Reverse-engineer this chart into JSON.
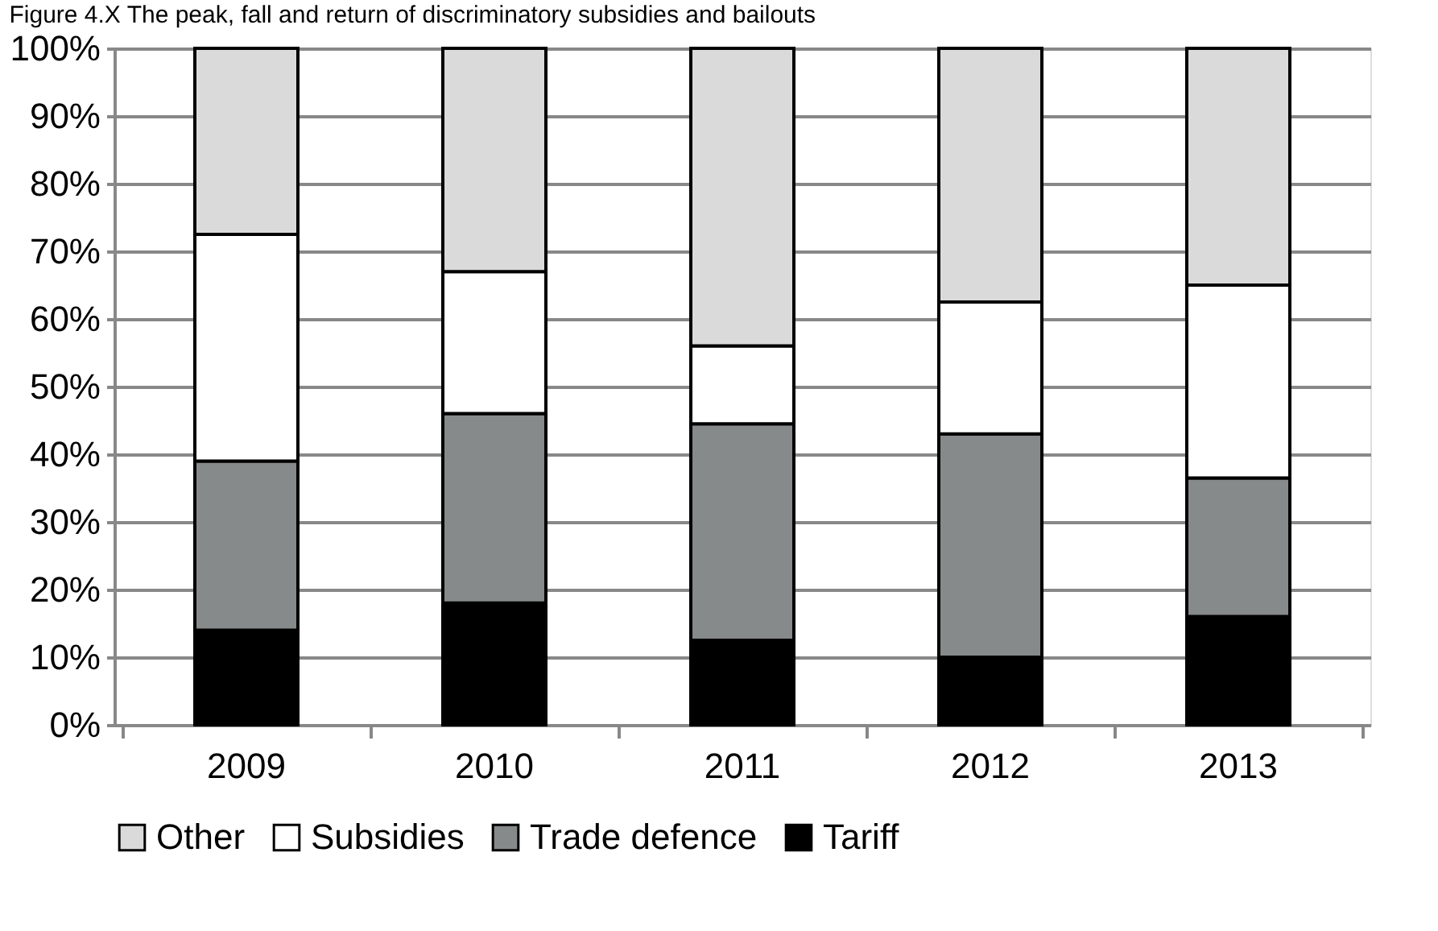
{
  "chart_data": {
    "type": "bar",
    "title": "Figure 4.X The peak, fall and return of discriminatory subsidies and bailouts",
    "categories": [
      "2009",
      "2010",
      "2011",
      "2012",
      "2013"
    ],
    "stacked": true,
    "series": [
      {
        "name": "Tariff",
        "color": "#000000",
        "values": [
          14,
          18,
          12.5,
          10,
          16
        ]
      },
      {
        "name": "Trade defence",
        "color": "#878a8a",
        "values": [
          25,
          28,
          32,
          33,
          20.5
        ]
      },
      {
        "name": "Subsidies",
        "color": "#ffffff",
        "values": [
          33.5,
          21,
          11.5,
          19.5,
          28.5
        ]
      },
      {
        "name": "Other",
        "color": "#d9dad9",
        "values": [
          27.5,
          33,
          44,
          37.5,
          35
        ]
      }
    ],
    "ylim": [
      0,
      100
    ],
    "yticks": [
      {
        "value": 0,
        "label": "0%"
      },
      {
        "value": 10,
        "label": "10%"
      },
      {
        "value": 20,
        "label": "20%"
      },
      {
        "value": 30,
        "label": "30%"
      },
      {
        "value": 40,
        "label": "40%"
      },
      {
        "value": 50,
        "label": "50%"
      },
      {
        "value": 60,
        "label": "60%"
      },
      {
        "value": 70,
        "label": "70%"
      },
      {
        "value": 80,
        "label": "80%"
      },
      {
        "value": 90,
        "label": "90%"
      },
      {
        "value": 100,
        "label": "100%"
      }
    ],
    "grid": "y",
    "legend": "bottom"
  }
}
